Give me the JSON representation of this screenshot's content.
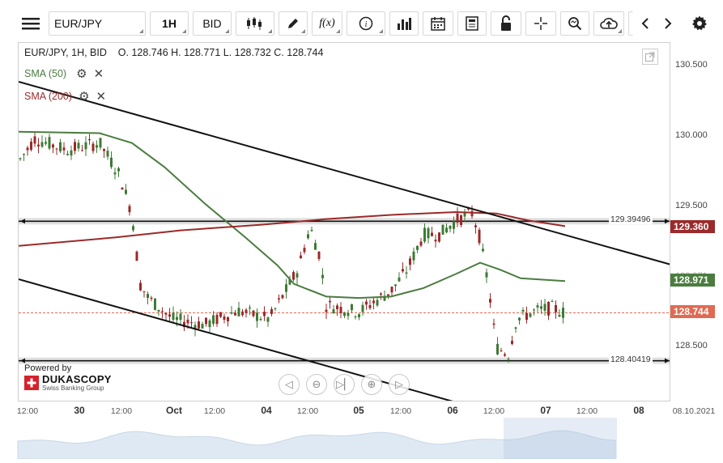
{
  "toolbar": {
    "symbol": "EUR/JPY",
    "timeframe": "1H",
    "price_side": "BID",
    "formula_label": "f(x)"
  },
  "chart": {
    "info": "EUR/JPY, 1H, BID",
    "ohlc": "O. 128.746  H. 128.771  L. 128.732  C. 128.744",
    "indicators": [
      {
        "name": "SMA (50)",
        "color": "#4a7c3f"
      },
      {
        "name": "SMA (200)",
        "color": "#9b2a2a"
      }
    ],
    "price_labels": [
      "130.500",
      "130.000",
      "129.500",
      "128.500"
    ],
    "hidden_label": "128.971",
    "tags": {
      "sma200": "129.360",
      "sma50": "128.971",
      "last": "128.744"
    },
    "levels": {
      "upper": "129.39496",
      "lower": "128.40419"
    },
    "x_labels": [
      {
        "text": "12:00",
        "day": false
      },
      {
        "text": "30",
        "day": true
      },
      {
        "text": "12:00",
        "day": false
      },
      {
        "text": "Oct",
        "day": true
      },
      {
        "text": "12:00",
        "day": false
      },
      {
        "text": "04",
        "day": true
      },
      {
        "text": "12:00",
        "day": false
      },
      {
        "text": "05",
        "day": true
      },
      {
        "text": "12:00",
        "day": false
      },
      {
        "text": "06",
        "day": true
      },
      {
        "text": "12:00",
        "day": false
      },
      {
        "text": "07",
        "day": true
      },
      {
        "text": "12:00",
        "day": false
      },
      {
        "text": "08",
        "day": true
      }
    ],
    "date_label": "08.10.2021",
    "powered_by": "Powered by",
    "brand": "DUKASCOPY",
    "brand_sub": "Swiss Banking Group"
  },
  "colors": {
    "bull": "#3d7a35",
    "bear": "#9b2a2a",
    "sma50": "#4a7c3f",
    "sma200": "#9b2a2a",
    "last_tag": "#e06a52",
    "sma50_tag": "#4a7c3f",
    "sma200_tag": "#9b2a2a"
  }
}
